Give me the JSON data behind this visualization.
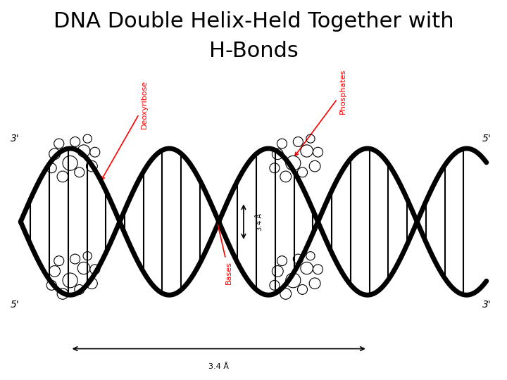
{
  "title_line1": "DNA Double Helix-Held Together with",
  "title_line2": "H-Bonds",
  "title_fontsize": 22,
  "title_font": "sans-serif",
  "bg_color": "#ffffff",
  "helix_color": "#000000",
  "label_color": "#ff0000",
  "corner_labels": {
    "top_left": "3'",
    "bottom_left": "5'",
    "top_right": "5'",
    "bottom_right": "3'"
  },
  "strand_labels": [
    "Deoxyribose",
    "Phosphates",
    "Bases"
  ],
  "measurement_label_bottom": "3.4 Å",
  "measurement_label_right": "3.4 Å"
}
